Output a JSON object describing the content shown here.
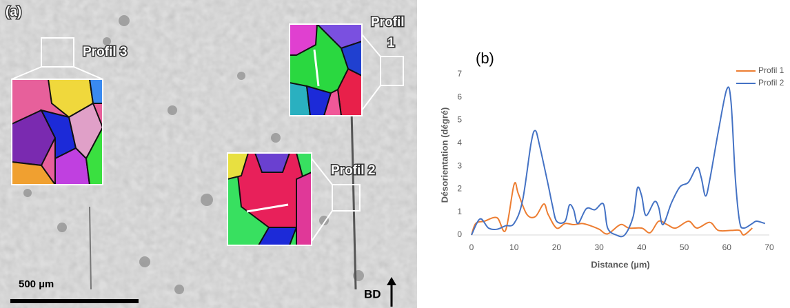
{
  "micrograph": {
    "panel_label": "(a)",
    "profil3_label": "Profil 3",
    "profil1_label": [
      "Profil",
      "1"
    ],
    "profil2_label": "Profil 2",
    "scale_label": "500 µm",
    "direction_label": "BD"
  },
  "chart_data": {
    "type": "line",
    "panel_label": "(b)",
    "x_label": "Distance (µm)",
    "y_label": "Désorientation (dégré)",
    "xlim": [
      0,
      70
    ],
    "xticks": [
      0,
      10,
      20,
      30,
      40,
      50,
      60,
      70
    ],
    "ylim": [
      0,
      7
    ],
    "yticks": [
      0,
      1,
      2,
      3,
      4,
      5,
      6,
      7
    ],
    "grid": false,
    "legend": "top-right",
    "series": [
      {
        "name": "Profil 1",
        "color": "#ed7d31",
        "x": [
          0,
          1,
          3,
          6,
          8,
          10,
          11,
          13,
          15,
          17,
          18,
          20,
          22,
          24,
          26,
          28,
          30,
          32,
          35,
          37,
          40,
          42,
          44,
          46,
          48,
          51,
          53,
          56,
          58,
          61,
          63,
          64,
          66
        ],
        "values": [
          0,
          0.5,
          0.6,
          0.75,
          0.2,
          2.2,
          1.8,
          0.9,
          0.8,
          1.35,
          0.9,
          0.3,
          0.5,
          0.45,
          0.5,
          0.4,
          0.25,
          0.05,
          0.45,
          0.3,
          0.3,
          0.1,
          0.6,
          0.45,
          0.3,
          0.6,
          0.3,
          0.55,
          0.2,
          0.2,
          0.2,
          0,
          0.3
        ]
      },
      {
        "name": "Profil 2",
        "color": "#4472c4",
        "x": [
          0,
          2,
          4,
          6,
          8,
          10,
          12,
          14,
          15,
          16,
          18,
          19,
          20,
          22,
          23,
          24,
          25,
          27,
          29,
          31,
          32,
          34,
          36,
          38,
          39,
          40,
          41,
          43,
          44,
          45,
          47,
          49,
          51,
          53,
          54,
          55,
          56,
          58,
          60,
          61,
          62,
          63,
          64,
          66,
          67,
          69
        ],
        "values": [
          0,
          0.7,
          0.3,
          0.25,
          0.4,
          0.5,
          1.5,
          4.0,
          4.55,
          3.9,
          2.2,
          1.3,
          0.6,
          0.6,
          1.3,
          1.1,
          0.5,
          1.15,
          1.1,
          1.35,
          0.3,
          0,
          0,
          0.8,
          2.05,
          1.7,
          0.85,
          1.45,
          1.2,
          0.45,
          1.4,
          2.1,
          2.3,
          2.95,
          2.5,
          1.7,
          2.4,
          4.5,
          6.35,
          5.8,
          2.5,
          0.6,
          0.3,
          0.5,
          0.6,
          0.5
        ]
      }
    ]
  }
}
